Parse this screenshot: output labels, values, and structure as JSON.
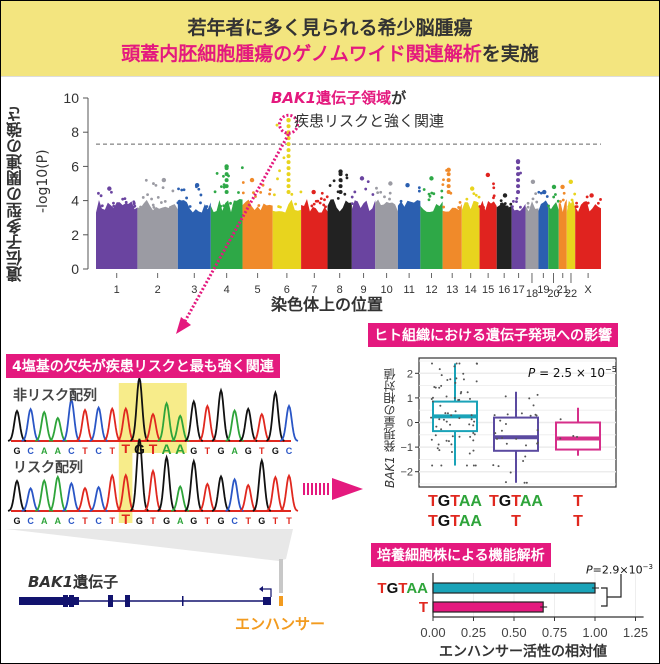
{
  "header": {
    "line1": "若年者に多く見られる希少脳腫瘍",
    "line2_highlight": "頭蓋内胚細胞腫瘍のゲノムワイド関連解析",
    "line2_rest": "を実施"
  },
  "annotation": {
    "gene_italic": "BAK1",
    "gene_rest": "遺伝子領域",
    "particle": "が",
    "line2": "疾患リスクと強く関連"
  },
  "deletion_panel": {
    "label": "4塩基の欠失が疾患リスクと最も強く関連",
    "non_risk_label": "非リスク配列",
    "risk_label": "リスク配列",
    "non_risk_sequence": "GCAACTCTTGTAAGTGAGTGC",
    "risk_sequence": "GCAACTCTTGTGAGTGCTGTT",
    "base_colors": {
      "G": "#111111",
      "C": "#2a56c6",
      "A": "#2ea43a",
      "T": "#e0281f"
    },
    "highlight_color": "#f7ec8a"
  },
  "gene": {
    "name_italic": "BAK1",
    "name_rest": "遺伝子",
    "enhancer_label": "エンハンサー",
    "gene_color": "#12136e",
    "enhancer_color": "#f29b1f"
  },
  "chart_data": [
    {
      "type": "scatter",
      "subtype": "manhattan",
      "ylabel_main": "遺伝子多型の関連の強さ",
      "ylabel_sub": "-log10(P)",
      "xlabel": "染色体上の位置",
      "ylim": [
        0,
        10
      ],
      "yticks": [
        "0",
        "2",
        "4",
        "6",
        "8",
        "10"
      ],
      "significance_threshold": 7.3,
      "chromosomes": [
        "1",
        "2",
        "3",
        "4",
        "5",
        "6",
        "7",
        "8",
        "9",
        "10",
        "11",
        "12",
        "13",
        "14",
        "15",
        "16",
        "17",
        "18",
        "19",
        "20",
        "21",
        "22",
        "X"
      ],
      "chromosome_colors": [
        "#6a44a0",
        "#9b9ba3",
        "#2b5fb0",
        "#2ea847",
        "#f08a2a",
        "#e8d41e",
        "#e0231f",
        "#222222",
        "#6a44a0",
        "#9b9ba3",
        "#2b5fb0",
        "#2ea847",
        "#f08a2a",
        "#e8d41e",
        "#e0231f",
        "#222222",
        "#6a44a0",
        "#9b9ba3",
        "#2b5fb0",
        "#2ea847",
        "#f08a2a",
        "#e8d41e",
        "#e0231f"
      ],
      "max_minus_log10p": [
        4.7,
        5.2,
        4.9,
        6.0,
        5.2,
        8.7,
        4.5,
        5.7,
        5.3,
        5.0,
        4.9,
        5.3,
        5.8,
        4.7,
        5.5,
        4.3,
        6.3,
        5.1,
        4.5,
        4.8,
        4.8,
        5.1,
        4.3
      ],
      "highlight": {
        "chromosome": "6",
        "value": 8.7,
        "color": "#e4197e"
      }
    },
    {
      "type": "box",
      "title": "ヒト組織における遺伝子発現への影響",
      "ylabel_italic": "BAK1",
      "ylabel_rest": " 発現量の相対値",
      "ylim": [
        -2.6,
        2.5
      ],
      "yticks": [
        "-2",
        "-1",
        "0",
        "1",
        "2"
      ],
      "annotation": {
        "p_prefix": "P",
        "p_text": " = 2.5 × 10",
        "p_exp": "−5"
      },
      "groups": [
        {
          "genotype": [
            "TGTAA",
            "TGTAA"
          ],
          "color": "#1aa3b8",
          "whisker_low": -1.75,
          "q1": -0.35,
          "median": 0.25,
          "q3": 0.85,
          "whisker_high": 2.4
        },
        {
          "genotype": [
            "TGTAA",
            "T"
          ],
          "color": "#5b4aa0",
          "whisker_low": -2.45,
          "q1": -1.15,
          "median": -0.6,
          "q3": 0.2,
          "whisker_high": 1.25
        },
        {
          "genotype": [
            "T",
            "T"
          ],
          "color": "#d62f8a",
          "whisker_low": -1.35,
          "q1": -1.1,
          "median": -0.65,
          "q3": 0.0,
          "whisker_high": 0.6
        }
      ]
    },
    {
      "type": "bar",
      "orientation": "horizontal",
      "title": "培養細胞株による機能解析",
      "xlabel": "エンハンサー活性の相対値",
      "xlim": [
        0,
        1.3
      ],
      "xticks": [
        "0.00",
        "0.25",
        "0.50",
        "0.75",
        "1.00",
        "1.25"
      ],
      "categories": [
        "TGTAA",
        "T"
      ],
      "values": [
        1.0,
        0.68
      ],
      "colors": [
        "#1aa3b8",
        "#e4197e"
      ],
      "annotation": {
        "p_prefix": "P",
        "p_text": "=2.9×10",
        "p_exp": "−3"
      }
    }
  ]
}
